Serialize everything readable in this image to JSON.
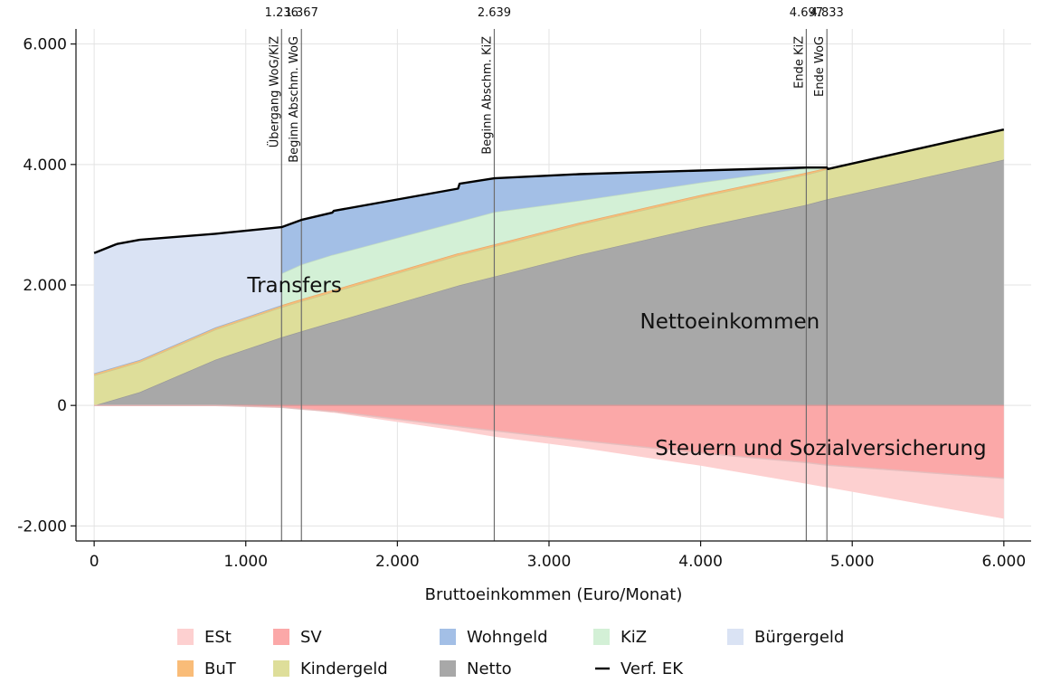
{
  "chart_data": {
    "type": "area",
    "xlabel": "Bruttoeinkommen (Euro/Monat)",
    "ylabel": "",
    "xlim": [
      -120,
      6180
    ],
    "ylim": [
      -2250,
      6250
    ],
    "x_ticks": [
      0,
      1000,
      2000,
      3000,
      4000,
      5000,
      6000
    ],
    "x_tick_labels": [
      "0",
      "1.000",
      "2.000",
      "3.000",
      "4.000",
      "5.000",
      "6.000"
    ],
    "y_ticks": [
      -2000,
      0,
      2000,
      4000,
      6000
    ],
    "y_tick_labels": [
      "-2.000",
      "0",
      "2.000",
      "4.000",
      "6.000"
    ],
    "grid": true,
    "vertical_lines": [
      {
        "x": 1236,
        "top_label": "1.236",
        "label": "Übergang WoG/KiZ"
      },
      {
        "x": 1367,
        "top_label": "1.367",
        "label": "Beginn Abschm. WoG"
      },
      {
        "x": 2639,
        "top_label": "2.639",
        "label": "Beginn Abschm. KiZ"
      },
      {
        "x": 4697,
        "top_label": "4.697",
        "label": "Ende KiZ"
      },
      {
        "x": 4833,
        "top_label": "4.833",
        "label": "Ende WoG"
      }
    ],
    "annotations": [
      {
        "text": "Transfers",
        "x": 1010,
        "y": 2000
      },
      {
        "text": "Nettoeinkommen",
        "x": 3600,
        "y": 1400
      },
      {
        "text": "Steuern und Sozialversicherung",
        "x": 3700,
        "y": -700
      }
    ],
    "x": [
      0,
      150,
      300,
      800,
      1236,
      1236,
      1367,
      1570,
      1580,
      2400,
      2410,
      2639,
      3200,
      4000,
      4697,
      4833,
      4840,
      6000
    ],
    "series": [
      {
        "name": "Netto",
        "color": "#a8a8a8",
        "lower": [
          0,
          0,
          0,
          0,
          0,
          0,
          0,
          0,
          0,
          0,
          0,
          0,
          0,
          0,
          0,
          0,
          0,
          0
        ],
        "upper": [
          0,
          110,
          220,
          760,
          1130,
          1130,
          1230,
          1380,
          1385,
          1990,
          1995,
          2140,
          2500,
          2960,
          3330,
          3420,
          3425,
          4080
        ]
      },
      {
        "name": "Kindergeld",
        "color": "#dede9a",
        "lower": [
          0,
          110,
          220,
          760,
          1130,
          1130,
          1230,
          1380,
          1385,
          1990,
          1995,
          2140,
          2500,
          2960,
          3330,
          3420,
          3425,
          4080
        ],
        "upper": [
          500,
          610,
          720,
          1260,
          1630,
          1630,
          1730,
          1880,
          1885,
          2490,
          2495,
          2640,
          3000,
          3460,
          3830,
          3920,
          3925,
          4580
        ]
      },
      {
        "name": "BuT",
        "color": "#f9bc78",
        "lower": [
          500,
          610,
          720,
          1260,
          1630,
          1630,
          1730,
          1880,
          1885,
          2490,
          2495,
          2640,
          3000,
          3460,
          3830,
          3920,
          3925,
          4580
        ],
        "upper": [
          535,
          645,
          755,
          1295,
          1665,
          1665,
          1765,
          1915,
          1920,
          2525,
          2530,
          2675,
          3035,
          3495,
          3865,
          3940,
          3925,
          4580
        ]
      },
      {
        "name": "KiZ",
        "color": "#d3f0d6",
        "lower": [
          535,
          645,
          755,
          1295,
          1665,
          1665,
          1765,
          1915,
          1920,
          2525,
          2530,
          2675,
          3035,
          3495,
          3865,
          3940,
          3925,
          4580
        ],
        "upper": [
          535,
          645,
          755,
          1295,
          1665,
          2190,
          2340,
          2500,
          2505,
          3050,
          3055,
          3210,
          3400,
          3700,
          3940,
          3940,
          3925,
          4580
        ]
      },
      {
        "name": "Wohngeld",
        "color": "#a3bfe6",
        "lower": [
          535,
          645,
          755,
          1295,
          1665,
          2190,
          2340,
          2500,
          2505,
          3050,
          3055,
          3210,
          3400,
          3700,
          3940,
          3940,
          3925,
          4580
        ],
        "upper": [
          535,
          645,
          755,
          1295,
          1665,
          2960,
          3080,
          3200,
          3230,
          3600,
          3680,
          3770,
          3840,
          3900,
          3950,
          3950,
          3925,
          4580
        ]
      },
      {
        "name": "Bürgergeld",
        "color": "#dae3f4",
        "lower": [
          535,
          645,
          755,
          1295,
          1665,
          2960,
          3080,
          3200,
          3230,
          3600,
          3680,
          3770,
          3840,
          3900,
          3950,
          3950,
          3925,
          4580
        ],
        "upper": [
          2530,
          2680,
          2750,
          2850,
          2960,
          2960,
          3080,
          3200,
          3230,
          3600,
          3680,
          3770,
          3840,
          3900,
          3950,
          3950,
          3925,
          4580
        ]
      },
      {
        "name": "SV",
        "color": "#fba8a8",
        "lower": [
          0,
          0,
          0,
          0,
          -30,
          -30,
          -60,
          -100,
          -100,
          -350,
          -355,
          -420,
          -580,
          -790,
          -950,
          -990,
          -992,
          -1210
        ],
        "upper": [
          0,
          0,
          0,
          0,
          0,
          0,
          0,
          0,
          0,
          0,
          0,
          0,
          0,
          0,
          0,
          0,
          0,
          0
        ]
      },
      {
        "name": "ESt",
        "color": "#fdd0d0",
        "lower": [
          0,
          0,
          0,
          0,
          -30,
          -30,
          -60,
          -120,
          -120,
          -420,
          -425,
          -520,
          -700,
          -1000,
          -1300,
          -1360,
          -1363,
          -1880
        ],
        "upper": [
          0,
          0,
          0,
          0,
          -30,
          -30,
          -60,
          -100,
          -100,
          -350,
          -355,
          -420,
          -580,
          -790,
          -950,
          -990,
          -992,
          -1210
        ]
      },
      {
        "name": "Verf. EK",
        "color": "#000000",
        "kind": "line",
        "values": [
          2530,
          2680,
          2750,
          2850,
          2960,
          2960,
          3080,
          3200,
          3230,
          3600,
          3680,
          3770,
          3840,
          3900,
          3950,
          3950,
          3925,
          4580
        ]
      }
    ],
    "legend": {
      "placement": "bottom",
      "rows": [
        [
          "ESt",
          "SV",
          "Wohngeld",
          "KiZ",
          "Bürgergeld"
        ],
        [
          "BuT",
          "Kindergeld",
          "Netto",
          "Verf. EK"
        ]
      ]
    }
  }
}
